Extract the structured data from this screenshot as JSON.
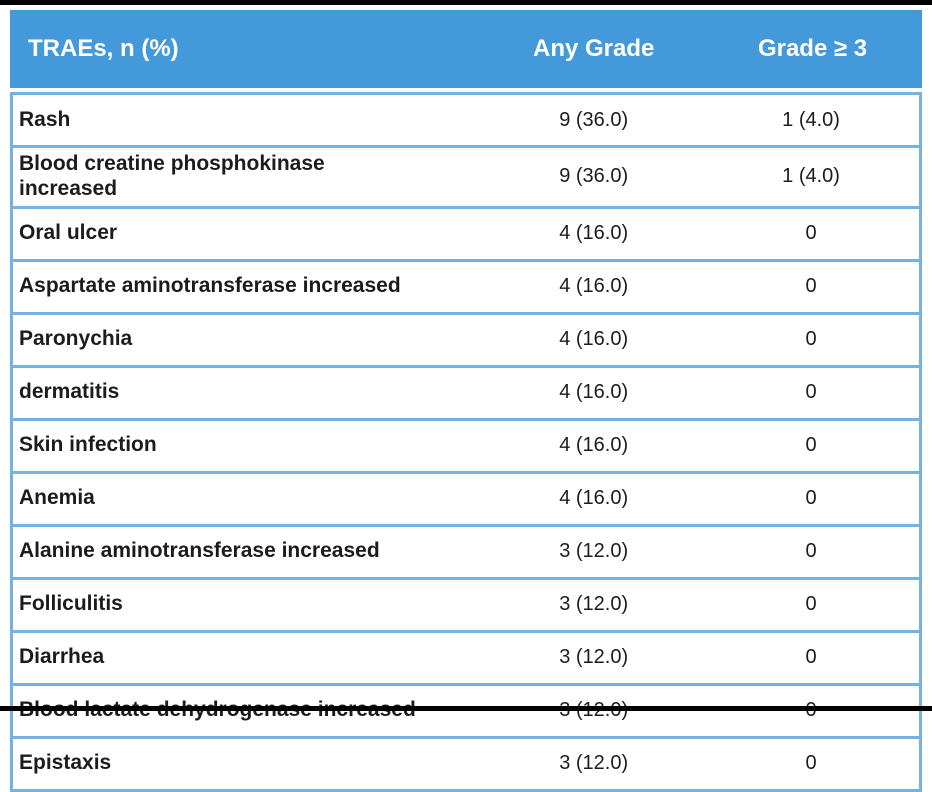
{
  "page": {
    "background": "#ffffff",
    "top_rule_color": "#000000",
    "bottom_rule_color": "#000000"
  },
  "table": {
    "colors": {
      "header_bg": "#4399d9",
      "header_text": "#ffffff",
      "border": "#74b2e3",
      "row_bg": "#ffffff",
      "row_text": "#1c1c1c"
    },
    "columns": [
      {
        "key": "trae",
        "label": "TRAEs, n (%)"
      },
      {
        "key": "any_grade",
        "label": "Any Grade"
      },
      {
        "key": "grade_ge3",
        "label": "Grade ≥ 3"
      }
    ],
    "rows": [
      {
        "trae": "Rash",
        "any_grade": "9 (36.0)",
        "grade_ge3": "1 (4.0)"
      },
      {
        "trae": "Blood creatine phosphokinase\nincreased",
        "any_grade": "9 (36.0)",
        "grade_ge3": "1 (4.0)"
      },
      {
        "trae": "Oral ulcer",
        "any_grade": "4 (16.0)",
        "grade_ge3": "0"
      },
      {
        "trae": "Aspartate aminotransferase increased",
        "any_grade": "4 (16.0)",
        "grade_ge3": "0"
      },
      {
        "trae": "Paronychia",
        "any_grade": "4 (16.0)",
        "grade_ge3": "0"
      },
      {
        "trae": "dermatitis",
        "any_grade": "4 (16.0)",
        "grade_ge3": "0"
      },
      {
        "trae": "Skin infection",
        "any_grade": "4 (16.0)",
        "grade_ge3": "0"
      },
      {
        "trae": "Anemia",
        "any_grade": "4 (16.0)",
        "grade_ge3": "0"
      },
      {
        "trae": "Alanine aminotransferase increased",
        "any_grade": "3 (12.0)",
        "grade_ge3": "0"
      },
      {
        "trae": "Folliculitis",
        "any_grade": "3 (12.0)",
        "grade_ge3": "0"
      },
      {
        "trae": "Diarrhea",
        "any_grade": "3 (12.0)",
        "grade_ge3": "0"
      },
      {
        "trae": "Blood lactate dehydrogenase increased",
        "any_grade": "3 (12.0)",
        "grade_ge3": "0"
      },
      {
        "trae": "Epistaxis",
        "any_grade": "3 (12.0)",
        "grade_ge3": "0"
      }
    ]
  },
  "chart_data": {
    "type": "table",
    "title": "TRAEs, n (%)",
    "columns": [
      "TRAEs, n (%)",
      "Any Grade",
      "Grade ≥ 3"
    ],
    "rows": [
      [
        "Rash",
        "9 (36.0)",
        "1 (4.0)"
      ],
      [
        "Blood creatine phosphokinase increased",
        "9 (36.0)",
        "1 (4.0)"
      ],
      [
        "Oral ulcer",
        "4 (16.0)",
        "0"
      ],
      [
        "Aspartate aminotransferase increased",
        "4 (16.0)",
        "0"
      ],
      [
        "Paronychia",
        "4 (16.0)",
        "0"
      ],
      [
        "dermatitis",
        "4 (16.0)",
        "0"
      ],
      [
        "Skin infection",
        "4 (16.0)",
        "0"
      ],
      [
        "Anemia",
        "4 (16.0)",
        "0"
      ],
      [
        "Alanine aminotransferase increased",
        "3 (12.0)",
        "0"
      ],
      [
        "Folliculitis",
        "3 (12.0)",
        "0"
      ],
      [
        "Diarrhea",
        "3 (12.0)",
        "0"
      ],
      [
        "Blood lactate dehydrogenase increased",
        "3 (12.0)",
        "0"
      ],
      [
        "Epistaxis",
        "3 (12.0)",
        "0"
      ]
    ]
  }
}
